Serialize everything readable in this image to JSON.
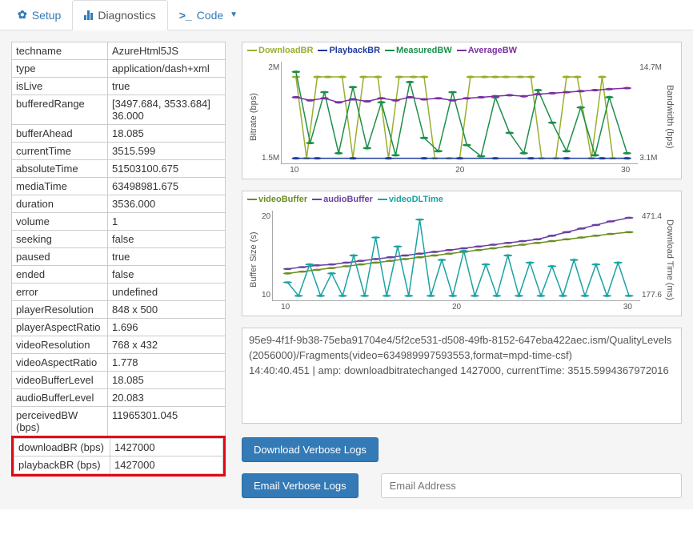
{
  "tabs": {
    "setup": "Setup",
    "diagnostics": "Diagnostics",
    "code": "Code"
  },
  "diag": [
    {
      "k": "techname",
      "v": "AzureHtml5JS"
    },
    {
      "k": "type",
      "v": "application/dash+xml"
    },
    {
      "k": "isLive",
      "v": "true"
    },
    {
      "k": "bufferedRange",
      "v": "[3497.684, 3533.684] 36.000"
    },
    {
      "k": "bufferAhead",
      "v": "18.085"
    },
    {
      "k": "currentTime",
      "v": "3515.599"
    },
    {
      "k": "absoluteTime",
      "v": "51503100.675"
    },
    {
      "k": "mediaTime",
      "v": "63498981.675"
    },
    {
      "k": "duration",
      "v": "3536.000"
    },
    {
      "k": "volume",
      "v": "1"
    },
    {
      "k": "seeking",
      "v": "false"
    },
    {
      "k": "paused",
      "v": "true"
    },
    {
      "k": "ended",
      "v": "false"
    },
    {
      "k": "error",
      "v": "undefined"
    },
    {
      "k": "playerResolution",
      "v": "848 x 500"
    },
    {
      "k": "playerAspectRatio",
      "v": "1.696"
    },
    {
      "k": "videoResolution",
      "v": "768 x 432"
    },
    {
      "k": "videoAspectRatio",
      "v": "1.778"
    },
    {
      "k": "videoBufferLevel",
      "v": "18.085"
    },
    {
      "k": "audioBufferLevel",
      "v": "20.083"
    },
    {
      "k": "perceivedBW (bps)",
      "v": "11965301.045"
    }
  ],
  "diag_highlight": [
    {
      "k": "downloadBR (bps)",
      "v": "1427000"
    },
    {
      "k": "playbackBR (bps)",
      "v": "1427000"
    }
  ],
  "chart1": {
    "y_left_label": "Bitrate (bps)",
    "y_right_label": "Bandwidth (bps)",
    "y_left_ticks": [
      "2M",
      "1.5M"
    ],
    "y_right_ticks": [
      "14.7M",
      "3.1M"
    ],
    "x_ticks": [
      "10",
      "20",
      "30"
    ],
    "legend": [
      {
        "label": "DownloadBR",
        "color": "#9aae2e"
      },
      {
        "label": "PlaybackBR",
        "color": "#1f3b9b"
      },
      {
        "label": "MeasuredBW",
        "color": "#1d8f4a"
      },
      {
        "label": "AverageBW",
        "color": "#7b2fa0"
      }
    ],
    "series": {
      "downloadBR": {
        "color": "#9aae2e",
        "pts": [
          [
            4,
            15
          ],
          [
            7,
            95
          ],
          [
            10,
            15
          ],
          [
            13,
            15
          ],
          [
            17,
            15
          ],
          [
            20,
            95
          ],
          [
            23,
            15
          ],
          [
            27,
            15
          ],
          [
            30,
            95
          ],
          [
            33,
            15
          ],
          [
            37,
            15
          ],
          [
            40,
            15
          ],
          [
            43,
            95
          ],
          [
            47,
            95
          ],
          [
            50,
            95
          ],
          [
            53,
            15
          ],
          [
            57,
            15
          ],
          [
            60,
            15
          ],
          [
            63,
            15
          ],
          [
            67,
            15
          ],
          [
            70,
            15
          ],
          [
            73,
            95
          ],
          [
            77,
            95
          ],
          [
            80,
            15
          ],
          [
            83,
            15
          ],
          [
            87,
            95
          ],
          [
            90,
            15
          ],
          [
            93,
            95
          ],
          [
            97,
            95
          ]
        ]
      },
      "playbackBR": {
        "color": "#1f3b9b",
        "pts": [
          [
            4,
            95
          ],
          [
            10,
            95
          ],
          [
            20,
            95
          ],
          [
            30,
            95
          ],
          [
            40,
            95
          ],
          [
            50,
            95
          ],
          [
            60,
            95
          ],
          [
            70,
            95
          ],
          [
            80,
            95
          ],
          [
            90,
            95
          ],
          [
            97,
            95
          ]
        ]
      },
      "measuredBW": {
        "color": "#1d8f4a",
        "pts": [
          [
            4,
            10
          ],
          [
            8,
            80
          ],
          [
            12,
            30
          ],
          [
            16,
            90
          ],
          [
            20,
            25
          ],
          [
            24,
            85
          ],
          [
            28,
            40
          ],
          [
            32,
            92
          ],
          [
            36,
            20
          ],
          [
            40,
            75
          ],
          [
            44,
            88
          ],
          [
            48,
            30
          ],
          [
            52,
            82
          ],
          [
            56,
            93
          ],
          [
            60,
            35
          ],
          [
            64,
            70
          ],
          [
            68,
            90
          ],
          [
            72,
            28
          ],
          [
            76,
            60
          ],
          [
            80,
            88
          ],
          [
            84,
            45
          ],
          [
            88,
            92
          ],
          [
            92,
            35
          ],
          [
            97,
            90
          ]
        ]
      },
      "averageBW": {
        "color": "#7b2fa0",
        "pts": [
          [
            4,
            35
          ],
          [
            8,
            38
          ],
          [
            12,
            36
          ],
          [
            16,
            40
          ],
          [
            20,
            37
          ],
          [
            24,
            39
          ],
          [
            28,
            36
          ],
          [
            32,
            38
          ],
          [
            36,
            35
          ],
          [
            40,
            37
          ],
          [
            44,
            36
          ],
          [
            48,
            38
          ],
          [
            52,
            36
          ],
          [
            56,
            35
          ],
          [
            60,
            34
          ],
          [
            64,
            33
          ],
          [
            68,
            34
          ],
          [
            72,
            32
          ],
          [
            76,
            31
          ],
          [
            80,
            30
          ],
          [
            84,
            29
          ],
          [
            88,
            28
          ],
          [
            92,
            27
          ],
          [
            97,
            26
          ]
        ]
      }
    }
  },
  "chart2": {
    "y_left_label": "Buffer Size (s)",
    "y_right_label": "Download Time (ms)",
    "y_left_ticks": [
      "20",
      "10"
    ],
    "y_right_ticks": [
      "471.4",
      "177.6"
    ],
    "x_ticks": [
      "10",
      "20",
      "30"
    ],
    "legend": [
      {
        "label": "videoBuffer",
        "color": "#6b8e23"
      },
      {
        "label": "audioBuffer",
        "color": "#6a3fa0"
      },
      {
        "label": "videoDLTime",
        "color": "#1aa3a3"
      }
    ],
    "series": {
      "videoBuffer": {
        "color": "#6b8e23",
        "pts": [
          [
            4,
            70
          ],
          [
            8,
            68
          ],
          [
            12,
            66
          ],
          [
            16,
            64
          ],
          [
            20,
            62
          ],
          [
            24,
            60
          ],
          [
            28,
            58
          ],
          [
            32,
            56
          ],
          [
            36,
            54
          ],
          [
            40,
            52
          ],
          [
            44,
            50
          ],
          [
            48,
            48
          ],
          [
            52,
            46
          ],
          [
            56,
            44
          ],
          [
            60,
            42
          ],
          [
            64,
            40
          ],
          [
            68,
            38
          ],
          [
            72,
            36
          ],
          [
            76,
            34
          ],
          [
            80,
            32
          ],
          [
            84,
            30
          ],
          [
            88,
            28
          ],
          [
            92,
            26
          ],
          [
            97,
            24
          ]
        ]
      },
      "audioBuffer": {
        "color": "#6a3fa0",
        "pts": [
          [
            4,
            65
          ],
          [
            8,
            63
          ],
          [
            12,
            61
          ],
          [
            16,
            60
          ],
          [
            20,
            58
          ],
          [
            24,
            56
          ],
          [
            28,
            54
          ],
          [
            32,
            52
          ],
          [
            36,
            50
          ],
          [
            40,
            48
          ],
          [
            44,
            46
          ],
          [
            48,
            44
          ],
          [
            52,
            42
          ],
          [
            56,
            40
          ],
          [
            60,
            38
          ],
          [
            64,
            36
          ],
          [
            68,
            34
          ],
          [
            72,
            32
          ],
          [
            76,
            28
          ],
          [
            80,
            24
          ],
          [
            84,
            20
          ],
          [
            88,
            16
          ],
          [
            92,
            12
          ],
          [
            97,
            8
          ]
        ]
      },
      "videoDLTime": {
        "color": "#1aa3a3",
        "pts": [
          [
            4,
            80
          ],
          [
            7,
            95
          ],
          [
            10,
            60
          ],
          [
            13,
            95
          ],
          [
            16,
            70
          ],
          [
            19,
            95
          ],
          [
            22,
            50
          ],
          [
            25,
            95
          ],
          [
            28,
            30
          ],
          [
            31,
            95
          ],
          [
            34,
            40
          ],
          [
            37,
            95
          ],
          [
            40,
            10
          ],
          [
            43,
            95
          ],
          [
            46,
            55
          ],
          [
            49,
            95
          ],
          [
            52,
            45
          ],
          [
            55,
            95
          ],
          [
            58,
            60
          ],
          [
            61,
            95
          ],
          [
            64,
            50
          ],
          [
            67,
            95
          ],
          [
            70,
            58
          ],
          [
            73,
            95
          ],
          [
            76,
            62
          ],
          [
            79,
            95
          ],
          [
            82,
            55
          ],
          [
            85,
            95
          ],
          [
            88,
            60
          ],
          [
            91,
            95
          ],
          [
            94,
            58
          ],
          [
            97,
            95
          ]
        ]
      }
    }
  },
  "log": "95e9-4f1f-9b38-75eba91704e4/5f2ce531-d508-49fb-8152-647eba422aec.ism/QualityLevels(2056000)/Fragments(video=634989997593553,format=mpd-time-csf)\n14:40:40.451 | amp: downloadbitratechanged 1427000, currentTime: 3515.5994367972016",
  "buttons": {
    "download": "Download Verbose Logs",
    "email": "Email Verbose Logs"
  },
  "email_placeholder": "Email Address",
  "colors": {
    "accent": "#337ab7",
    "highlight": "#e30613"
  }
}
